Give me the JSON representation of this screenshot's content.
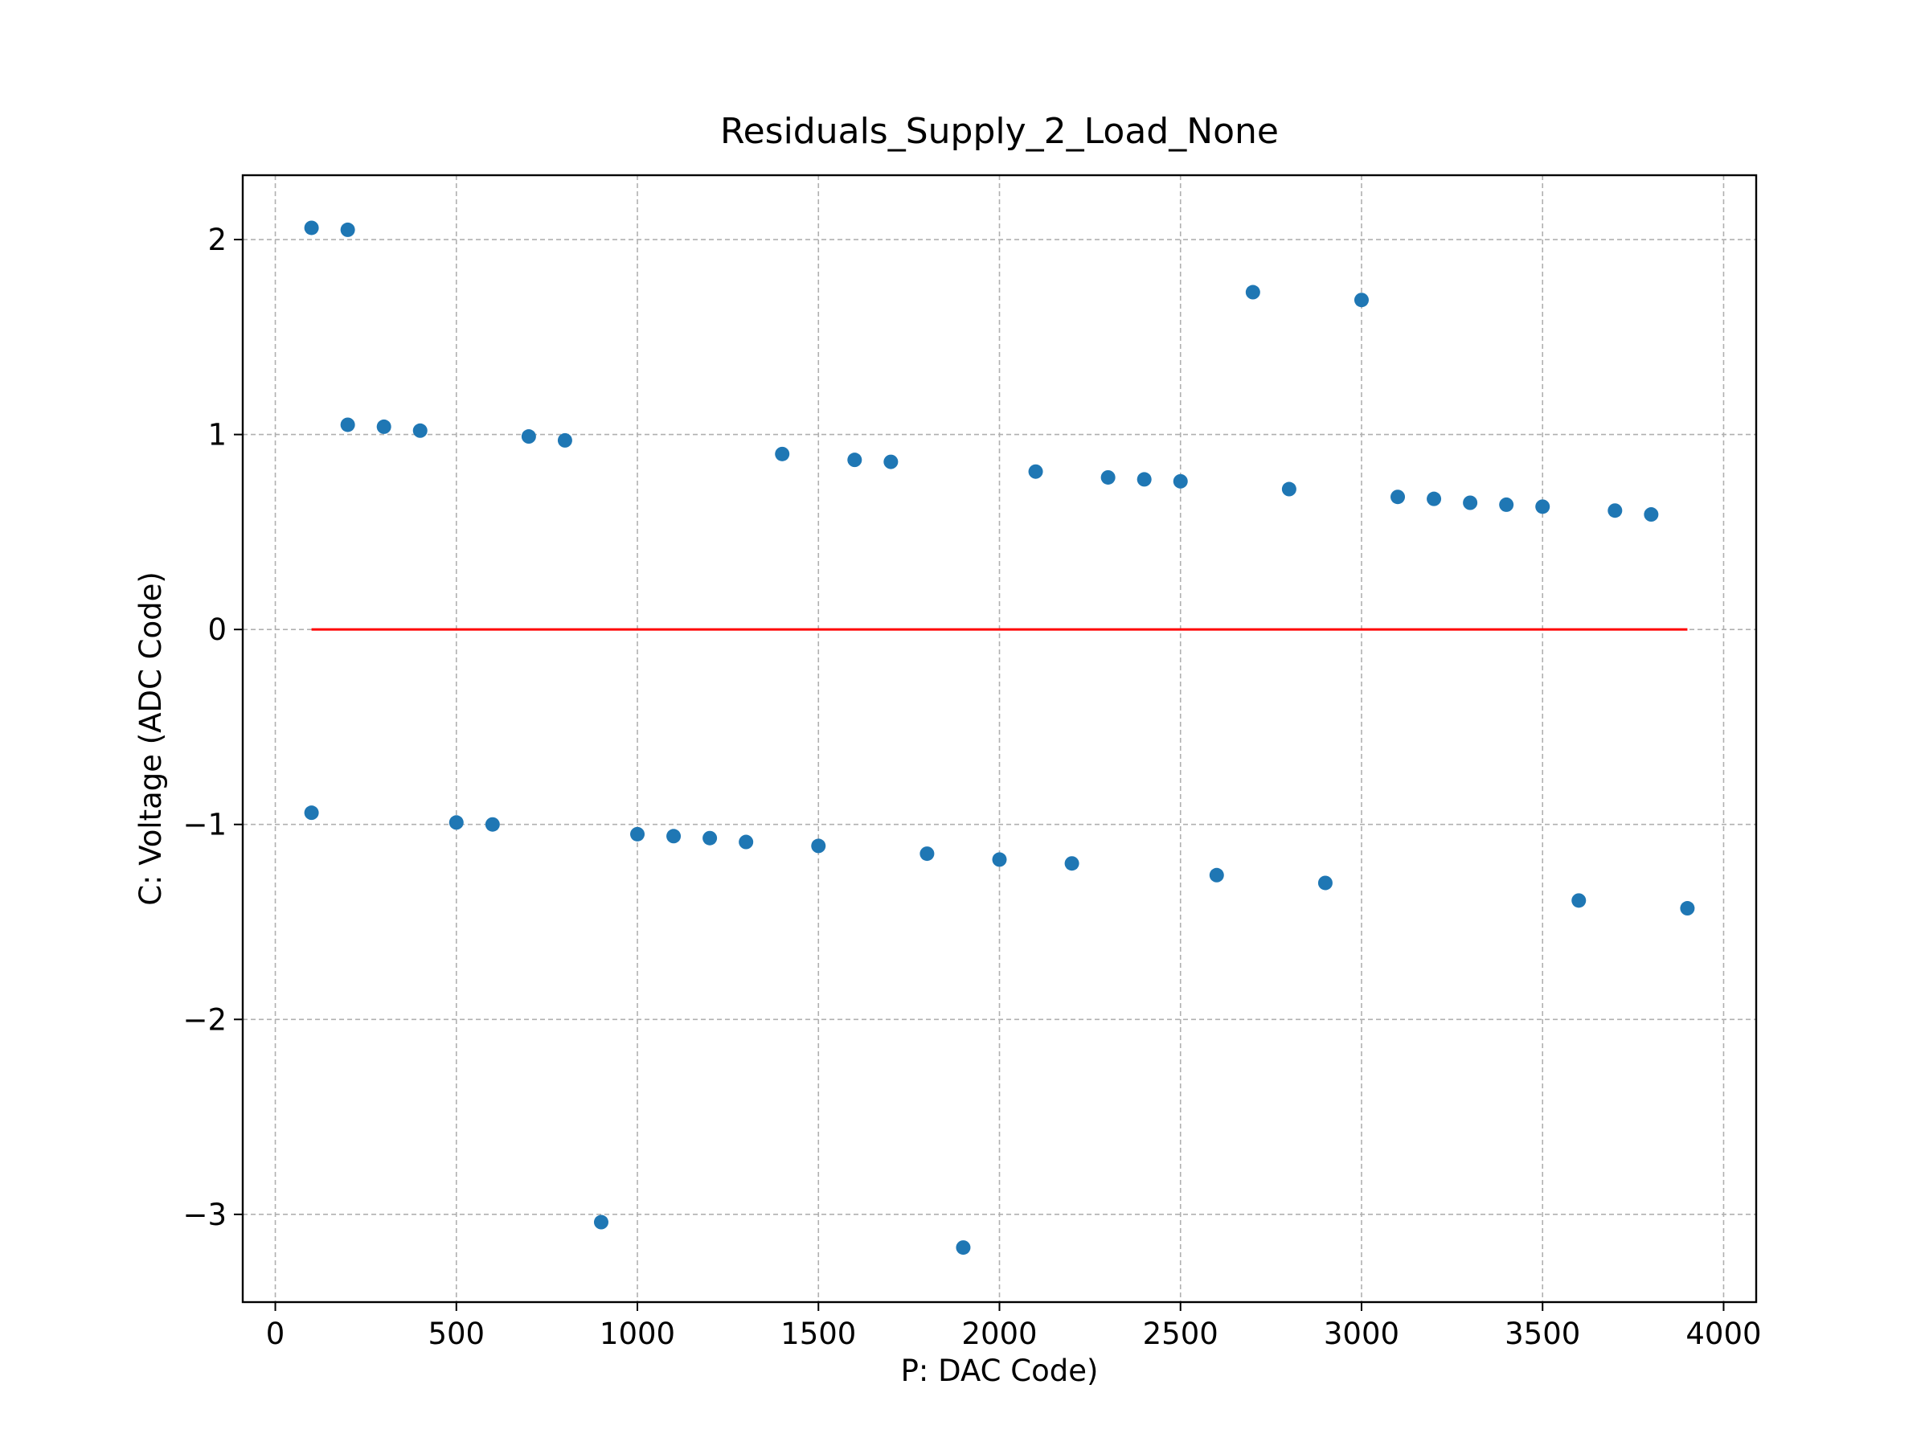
{
  "chart_data": {
    "type": "scatter",
    "title": "Residuals_Supply_2_Load_None",
    "xlabel": "P: DAC Code)",
    "ylabel": "C: Voltage (ADC Code)",
    "xlim": [
      -90,
      4090
    ],
    "ylim": [
      -3.45,
      2.33
    ],
    "xticks": [
      0,
      500,
      1000,
      1500,
      2000,
      2500,
      3000,
      3500,
      4000
    ],
    "xtick_labels": [
      "0",
      "500",
      "1000",
      "1500",
      "2000",
      "2500",
      "3000",
      "3500",
      "4000"
    ],
    "yticks": [
      2,
      1,
      0,
      -1,
      -2,
      -3
    ],
    "ytick_labels": [
      "2",
      "1",
      "0",
      "−1",
      "−2",
      "−3"
    ],
    "grid": true,
    "reference_line": {
      "x": [
        100,
        3900
      ],
      "y": [
        0,
        0
      ],
      "color": "#ff0000"
    },
    "series": [
      {
        "color": "#1f77b4",
        "points": [
          [
            100,
            2.06
          ],
          [
            200,
            2.05
          ],
          [
            200,
            1.05
          ],
          [
            300,
            1.04
          ],
          [
            400,
            1.02
          ],
          [
            700,
            0.99
          ],
          [
            800,
            0.97
          ],
          [
            1400,
            0.9
          ],
          [
            1600,
            0.87
          ],
          [
            1700,
            0.86
          ],
          [
            2100,
            0.81
          ],
          [
            2300,
            0.78
          ],
          [
            2400,
            0.77
          ],
          [
            2500,
            0.76
          ],
          [
            2700,
            1.73
          ],
          [
            2800,
            0.72
          ],
          [
            3000,
            1.69
          ],
          [
            3100,
            0.68
          ],
          [
            3200,
            0.67
          ],
          [
            3300,
            0.65
          ],
          [
            3400,
            0.64
          ],
          [
            3500,
            0.63
          ],
          [
            3700,
            0.61
          ],
          [
            3800,
            0.59
          ],
          [
            100,
            -0.94
          ],
          [
            500,
            -0.99
          ],
          [
            600,
            -1.0
          ],
          [
            900,
            -3.04
          ],
          [
            1000,
            -1.05
          ],
          [
            1100,
            -1.06
          ],
          [
            1200,
            -1.07
          ],
          [
            1300,
            -1.09
          ],
          [
            1500,
            -1.11
          ],
          [
            1800,
            -1.15
          ],
          [
            1900,
            -3.17
          ],
          [
            2000,
            -1.18
          ],
          [
            2200,
            -1.2
          ],
          [
            2600,
            -1.26
          ],
          [
            2900,
            -1.3
          ],
          [
            3600,
            -1.39
          ],
          [
            3900,
            -1.43
          ]
        ]
      }
    ]
  }
}
